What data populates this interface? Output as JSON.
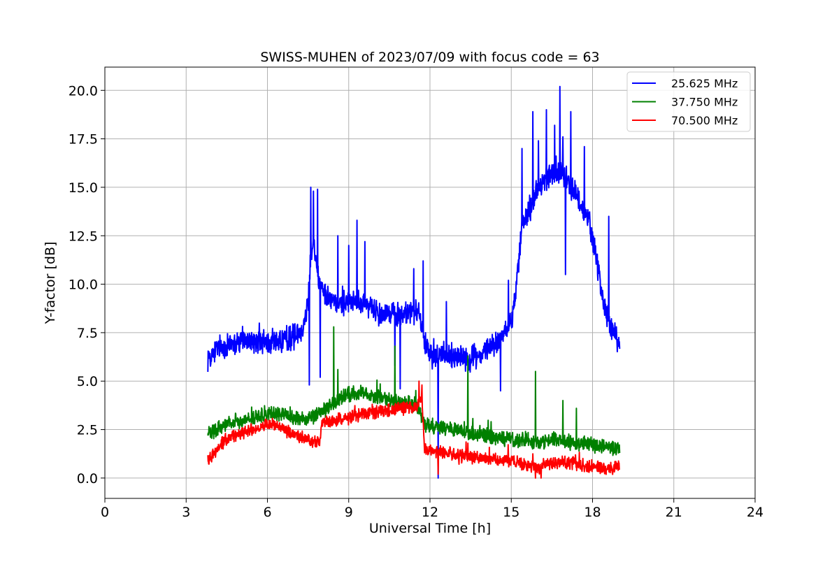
{
  "chart_data": {
    "type": "line",
    "title": "SWISS-MUHEN of 2023/07/09 with focus code = 63",
    "xlabel": "Universal Time [h]",
    "ylabel": "Y-factor [dB]",
    "xlim": [
      0,
      24
    ],
    "ylim": [
      -1.05,
      21.2
    ],
    "xticks": [
      0,
      3,
      6,
      9,
      12,
      15,
      18,
      21,
      24
    ],
    "xtick_labels": [
      "0",
      "3",
      "6",
      "9",
      "12",
      "15",
      "18",
      "21",
      "24"
    ],
    "yticks": [
      0,
      2.5,
      5,
      7.5,
      10,
      12.5,
      15,
      17.5,
      20
    ],
    "ytick_labels": [
      "0.0",
      "2.5",
      "5.0",
      "7.5",
      "10.0",
      "12.5",
      "15.0",
      "17.5",
      "20.0"
    ],
    "grid": true,
    "legend_position": "upper-right",
    "series": [
      {
        "name": "25.625 MHz",
        "color": "#0000ff",
        "noise": 0.5,
        "x": [
          3.8,
          4.2,
          4.6,
          5.0,
          5.5,
          6.0,
          6.5,
          7.0,
          7.3,
          7.5,
          7.6,
          7.7,
          7.8,
          7.9,
          8.0,
          8.3,
          8.6,
          9.0,
          9.3,
          9.6,
          10.0,
          10.5,
          11.0,
          11.3,
          11.6,
          11.8,
          12.0,
          12.3,
          12.6,
          13.0,
          13.5,
          14.0,
          14.5,
          15.0,
          15.2,
          15.4,
          15.6,
          15.8,
          16.0,
          16.3,
          16.6,
          16.8,
          17.0,
          17.3,
          17.6,
          17.9,
          18.2,
          18.4,
          18.6,
          18.8,
          19.0
        ],
        "y": [
          6.2,
          6.7,
          6.9,
          7.0,
          7.0,
          7.0,
          7.1,
          7.3,
          7.8,
          9.0,
          11.5,
          12.5,
          11.0,
          10.2,
          9.8,
          9.3,
          9.0,
          9.1,
          9.0,
          9.0,
          8.7,
          8.5,
          8.4,
          8.6,
          8.5,
          6.8,
          6.4,
          6.3,
          6.4,
          6.3,
          6.2,
          6.5,
          7.0,
          8.0,
          10.0,
          13.0,
          13.8,
          14.2,
          15.0,
          15.5,
          15.8,
          15.8,
          15.5,
          14.8,
          14.0,
          13.0,
          11.0,
          9.0,
          8.0,
          7.5,
          6.8
        ],
        "spikes": [
          [
            7.6,
            15.0
          ],
          [
            7.7,
            14.8
          ],
          [
            7.85,
            14.9
          ],
          [
            7.55,
            4.8
          ],
          [
            7.95,
            5.2
          ],
          [
            8.6,
            12.5
          ],
          [
            9.0,
            12.0
          ],
          [
            9.3,
            13.3
          ],
          [
            9.6,
            12.2
          ],
          [
            10.7,
            5.8
          ],
          [
            10.9,
            4.6
          ],
          [
            11.4,
            10.8
          ],
          [
            11.75,
            11.2
          ],
          [
            12.3,
            0.0
          ],
          [
            12.6,
            9.1
          ],
          [
            14.6,
            4.5
          ],
          [
            14.9,
            10.2
          ],
          [
            15.4,
            17.0
          ],
          [
            15.8,
            18.9
          ],
          [
            16.0,
            17.4
          ],
          [
            16.3,
            19.0
          ],
          [
            16.6,
            18.2
          ],
          [
            16.8,
            20.2
          ],
          [
            16.9,
            17.6
          ],
          [
            17.0,
            10.5
          ],
          [
            17.2,
            18.9
          ],
          [
            17.7,
            17.1
          ],
          [
            18.2,
            10.2
          ],
          [
            18.6,
            13.5
          ],
          [
            18.85,
            7.2
          ]
        ]
      },
      {
        "name": "37.750 MHz",
        "color": "#008000",
        "noise": 0.3,
        "x": [
          3.8,
          4.2,
          4.6,
          5.0,
          5.5,
          6.0,
          6.5,
          7.0,
          7.5,
          8.0,
          8.3,
          8.6,
          9.0,
          9.5,
          10.0,
          10.5,
          11.0,
          11.5,
          11.8,
          12.0,
          12.5,
          13.0,
          13.5,
          14.0,
          14.5,
          15.0,
          15.5,
          16.0,
          16.5,
          17.0,
          17.5,
          18.0,
          18.5,
          19.0
        ],
        "y": [
          2.3,
          2.5,
          2.9,
          3.0,
          3.1,
          3.3,
          3.3,
          3.1,
          3.0,
          3.4,
          3.7,
          4.0,
          4.3,
          4.4,
          4.2,
          4.0,
          3.9,
          3.8,
          2.8,
          2.7,
          2.6,
          2.4,
          2.3,
          2.2,
          2.1,
          2.0,
          2.0,
          1.8,
          2.0,
          1.9,
          1.8,
          1.7,
          1.6,
          1.5
        ],
        "spikes": [
          [
            8.45,
            7.8
          ],
          [
            8.6,
            5.6
          ],
          [
            10.7,
            6.8
          ],
          [
            13.4,
            6.3
          ],
          [
            15.9,
            5.5
          ],
          [
            16.9,
            4.0
          ],
          [
            17.4,
            3.6
          ]
        ]
      },
      {
        "name": "70.500 MHz",
        "color": "#ff0000",
        "noise": 0.25,
        "x": [
          3.8,
          4.0,
          4.3,
          4.6,
          5.0,
          5.5,
          6.0,
          6.5,
          7.0,
          7.5,
          7.95,
          8.0,
          8.5,
          9.0,
          9.5,
          10.0,
          10.5,
          11.0,
          11.5,
          11.7,
          11.8,
          12.0,
          12.5,
          13.0,
          13.5,
          14.0,
          14.5,
          15.0,
          15.5,
          15.9,
          16.0,
          16.2,
          16.5,
          17.0,
          17.5,
          18.0,
          18.5,
          19.0
        ],
        "y": [
          1.0,
          1.2,
          1.8,
          2.1,
          2.3,
          2.5,
          2.8,
          2.6,
          2.2,
          2.0,
          1.8,
          2.9,
          3.0,
          3.1,
          3.3,
          3.4,
          3.5,
          3.6,
          3.7,
          4.2,
          1.5,
          1.4,
          1.3,
          1.2,
          1.1,
          1.0,
          0.9,
          0.9,
          0.7,
          0.6,
          0.4,
          0.7,
          0.8,
          0.8,
          0.7,
          0.6,
          0.5,
          0.6
        ],
        "spikes": [
          [
            11.6,
            5.0
          ],
          [
            11.7,
            4.8
          ],
          [
            12.3,
            0.2
          ],
          [
            13.4,
            1.8
          ],
          [
            15.9,
            0.0
          ],
          [
            16.1,
            0.0
          ]
        ]
      }
    ]
  }
}
